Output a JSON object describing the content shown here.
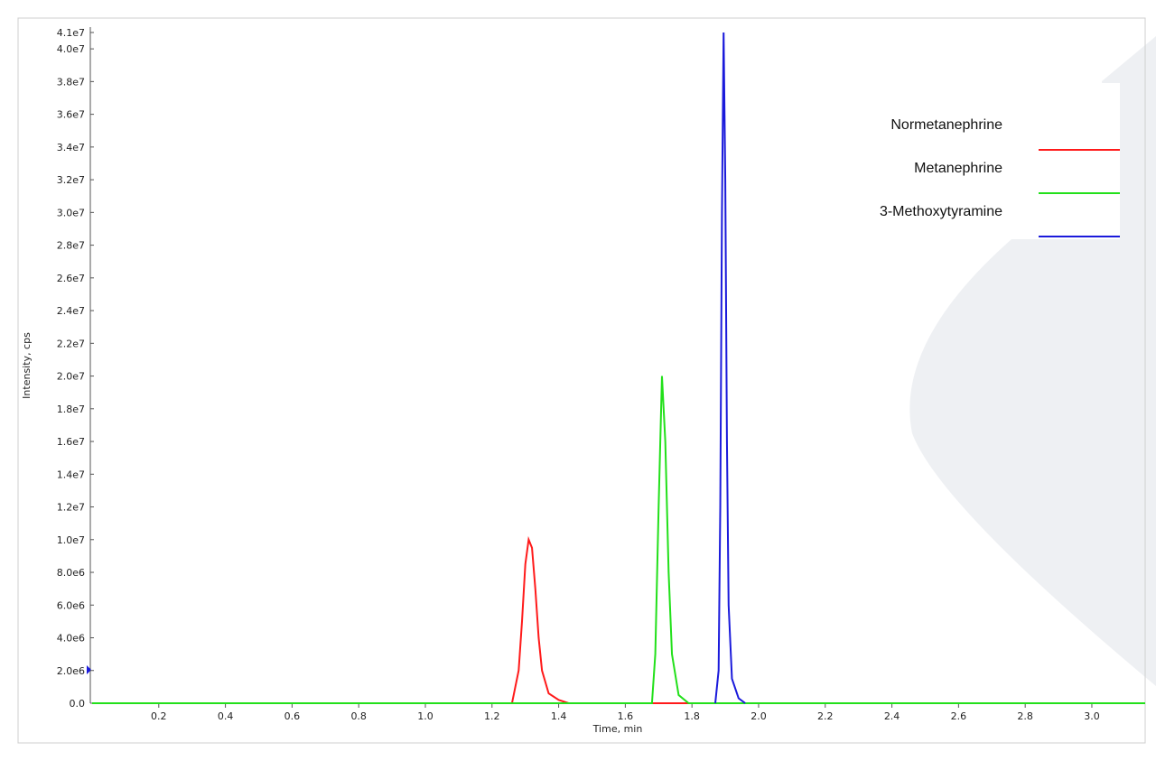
{
  "chart_data": {
    "type": "line",
    "xlabel": "Time, min",
    "ylabel": "Intensity, cps",
    "xlim": [
      0,
      3.16
    ],
    "ylim": [
      0,
      41000000
    ],
    "xticks": [
      0.2,
      0.4,
      0.6,
      0.8,
      {
        "value": 1,
        "label": "1.0"
      },
      1.2,
      1.4,
      1.6,
      1.8,
      {
        "value": 2,
        "label": "2.0"
      },
      2.2,
      2.4,
      2.6,
      2.8,
      {
        "value": 3,
        "label": "3.0"
      }
    ],
    "yticks": [
      {
        "value": 0,
        "label": "0.0"
      },
      {
        "value": 2000000,
        "label": "2.0e6"
      },
      {
        "value": 4000000,
        "label": "4.0e6"
      },
      {
        "value": 6000000,
        "label": "6.0e6"
      },
      {
        "value": 8000000,
        "label": "8.0e6"
      },
      {
        "value": 10000000,
        "label": "1.0e7"
      },
      {
        "value": 12000000,
        "label": "1.2e7"
      },
      {
        "value": 14000000,
        "label": "1.4e7"
      },
      {
        "value": 16000000,
        "label": "1.6e7"
      },
      {
        "value": 18000000,
        "label": "1.8e7"
      },
      {
        "value": 20000000,
        "label": "2.0e7"
      },
      {
        "value": 22000000,
        "label": "2.2e7"
      },
      {
        "value": 24000000,
        "label": "2.4e7"
      },
      {
        "value": 26000000,
        "label": "2.6e7"
      },
      {
        "value": 28000000,
        "label": "2.8e7"
      },
      {
        "value": 30000000,
        "label": "3.0e7"
      },
      {
        "value": 32000000,
        "label": "3.2e7"
      },
      {
        "value": 34000000,
        "label": "3.4e7"
      },
      {
        "value": 36000000,
        "label": "3.6e7"
      },
      {
        "value": 38000000,
        "label": "3.8e7"
      },
      {
        "value": 40000000,
        "label": "4.0e7"
      },
      {
        "value": 41000000,
        "label": "4.1e7"
      }
    ],
    "legend": "upper right",
    "grid": false,
    "series": [
      {
        "name": "Normetanephrine",
        "color": "#ff1a1a",
        "x": [
          0,
          1.26,
          1.28,
          1.29,
          1.3,
          1.31,
          1.32,
          1.33,
          1.34,
          1.35,
          1.37,
          1.4,
          1.43,
          3.16
        ],
        "values": [
          0,
          0,
          2000000,
          5000000,
          8500000,
          10000000,
          9500000,
          7000000,
          4000000,
          2000000,
          600000,
          200000,
          0,
          0
        ]
      },
      {
        "name": "Metanephrine",
        "color": "#22e01a",
        "x": [
          0,
          1.68,
          1.69,
          1.7,
          1.71,
          1.72,
          1.73,
          1.74,
          1.76,
          1.79,
          3.16
        ],
        "values": [
          0,
          0,
          3000000,
          12000000,
          20000000,
          16000000,
          8000000,
          3000000,
          500000,
          0,
          0
        ]
      },
      {
        "name": "3-Methoxytyramine",
        "color": "#1a1adb",
        "x": [
          1.87,
          1.88,
          1.885,
          1.89,
          1.895,
          1.9,
          1.905,
          1.91,
          1.92,
          1.94,
          1.96
        ],
        "values": [
          0,
          2000000,
          12000000,
          30000000,
          41000000,
          32000000,
          16000000,
          6000000,
          1500000,
          300000,
          0
        ]
      }
    ]
  }
}
